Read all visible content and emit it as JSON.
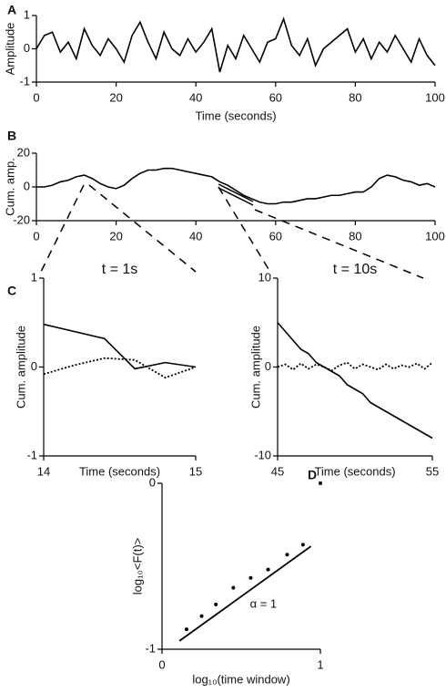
{
  "chart_data": [
    {
      "panel": "A",
      "type": "line",
      "ylabel": "Amplitude",
      "xlabel": "Time (seconds)",
      "xlim": [
        0,
        100
      ],
      "ylim": [
        -1,
        1
      ],
      "xticks": [
        0,
        20,
        40,
        60,
        80,
        100
      ],
      "yticks": [
        1,
        0,
        -1
      ],
      "x": [
        0,
        2,
        4,
        6,
        8,
        10,
        12,
        14,
        16,
        18,
        20,
        22,
        24,
        26,
        28,
        30,
        32,
        34,
        36,
        38,
        40,
        42,
        44,
        46,
        48,
        50,
        52,
        54,
        56,
        58,
        60,
        62,
        64,
        66,
        68,
        70,
        72,
        74,
        76,
        78,
        80,
        82,
        84,
        86,
        88,
        90,
        92,
        94,
        96,
        98,
        100
      ],
      "series": [
        {
          "color": "#000000",
          "style": "solid",
          "values": [
            0.0,
            0.4,
            0.5,
            -0.1,
            0.2,
            -0.3,
            0.6,
            0.1,
            -0.2,
            0.3,
            0.0,
            -0.4,
            0.4,
            0.8,
            0.2,
            -0.3,
            0.5,
            0.0,
            -0.2,
            0.3,
            -0.1,
            0.2,
            0.6,
            -0.7,
            0.1,
            -0.3,
            0.4,
            0.0,
            -0.4,
            0.2,
            0.3,
            0.9,
            0.1,
            -0.2,
            0.3,
            -0.5,
            0.0,
            0.2,
            0.4,
            0.6,
            -0.1,
            0.3,
            -0.3,
            0.2,
            -0.1,
            0.4,
            0.0,
            -0.4,
            0.3,
            -0.2,
            -0.5
          ]
        }
      ]
    },
    {
      "panel": "B",
      "type": "line",
      "ylabel": "Cum. amp.",
      "xlim": [
        0,
        100
      ],
      "ylim": [
        -20,
        20
      ],
      "xticks": [
        0,
        20,
        40,
        60,
        80,
        100
      ],
      "yticks": [
        20,
        0,
        -20
      ],
      "x": [
        0,
        2,
        4,
        6,
        8,
        10,
        12,
        14,
        16,
        18,
        20,
        22,
        24,
        26,
        28,
        30,
        32,
        34,
        36,
        38,
        40,
        42,
        44,
        46,
        48,
        50,
        52,
        54,
        56,
        58,
        60,
        62,
        64,
        66,
        68,
        70,
        72,
        74,
        76,
        78,
        80,
        82,
        84,
        86,
        88,
        90,
        92,
        94,
        96,
        98,
        100
      ],
      "series": [
        {
          "color": "#000000",
          "style": "solid",
          "values": [
            0,
            0,
            1,
            3,
            4,
            6,
            7,
            5,
            2,
            0,
            -1,
            1,
            5,
            8,
            10,
            10,
            11,
            11,
            10,
            9,
            8,
            7,
            6,
            3,
            1,
            -2,
            -5,
            -7,
            -9,
            -10,
            -10,
            -9,
            -9,
            -8,
            -7,
            -7,
            -6,
            -5,
            -5,
            -4,
            -3,
            -3,
            0,
            5,
            7,
            6,
            4,
            3,
            1,
            2,
            0
          ]
        }
      ]
    },
    {
      "panel": "C",
      "type": "line",
      "title": "t = 1s",
      "ylabel": "Cum. amplitude",
      "xlabel": "Time (seconds)",
      "xlim": [
        14,
        15
      ],
      "ylim": [
        -1,
        1
      ],
      "xticks": [
        14,
        15
      ],
      "yticks": [
        1,
        0,
        -1
      ],
      "x": [
        14,
        14.2,
        14.4,
        14.6,
        14.8,
        15
      ],
      "series": [
        {
          "color": "#000000",
          "style": "solid",
          "values": [
            0.48,
            0.4,
            0.32,
            -0.02,
            0.05,
            0.0
          ]
        },
        {
          "color": "#000000",
          "style": "dotted",
          "values": [
            -0.08,
            0.02,
            0.1,
            0.08,
            -0.12,
            0.0
          ]
        }
      ]
    },
    {
      "type": "line",
      "title": "t = 10s",
      "ylabel": "Cum. amplitude",
      "xlabel": "Time (seconds)",
      "xlim": [
        45,
        55
      ],
      "ylim": [
        -10,
        10
      ],
      "xticks": [
        45,
        55
      ],
      "yticks": [
        10,
        0,
        -10
      ],
      "x": [
        45,
        45.5,
        46,
        46.5,
        47,
        47.5,
        48,
        48.5,
        49,
        49.5,
        50,
        50.5,
        51,
        51.5,
        52,
        52.5,
        53,
        53.5,
        54,
        54.5,
        55
      ],
      "series": [
        {
          "color": "#000000",
          "style": "solid",
          "values": [
            5,
            4,
            3,
            2,
            1.5,
            0.5,
            0,
            -0.5,
            -1,
            -2,
            -2.5,
            -3,
            -4,
            -4.5,
            -5,
            -5.5,
            -6,
            -6.5,
            -7,
            -7.5,
            -8
          ]
        },
        {
          "color": "#000000",
          "style": "dotted",
          "values": [
            0,
            0.3,
            -0.3,
            0.4,
            -0.2,
            0.3,
            0,
            -0.4,
            0.2,
            0.5,
            -0.2,
            0.3,
            0,
            -0.3,
            0.3,
            -0.2,
            0.2,
            0,
            0.4,
            -0.2,
            0.5
          ]
        }
      ]
    },
    {
      "panel": "D",
      "type": "scatter",
      "ylabel": "log₁₀<F(t)>",
      "xlabel": "log₁₀(time window)",
      "annotation": "α = 1",
      "xlim": [
        0,
        1
      ],
      "ylim": [
        -1,
        0
      ],
      "xticks": [
        0,
        1
      ],
      "yticks": [
        0,
        -1
      ],
      "x": [
        0.155,
        0.25,
        0.34,
        0.45,
        0.56,
        0.67,
        0.79,
        0.89,
        1.0
      ],
      "series": [
        {
          "color": "#000000",
          "values": [
            -0.88,
            -0.8,
            -0.73,
            -0.63,
            -0.57,
            -0.52,
            -0.43,
            -0.37,
            0.0
          ]
        }
      ],
      "fit_line": {
        "x": [
          0.11,
          0.94
        ],
        "y": [
          -0.95,
          -0.38
        ]
      }
    }
  ]
}
